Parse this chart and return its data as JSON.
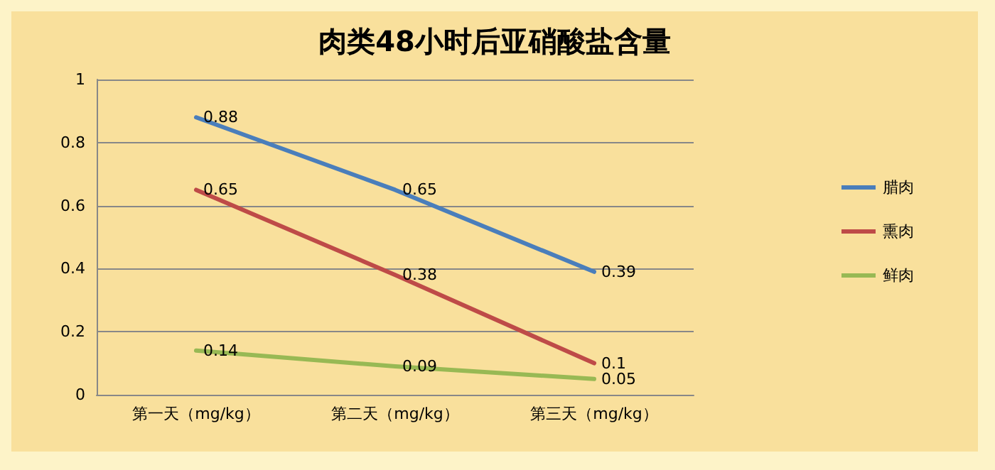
{
  "chart_data": {
    "type": "line",
    "title": "肉类48小时后亚硝酸盐含量",
    "categories": [
      "第一天（mg/kg）",
      "第二天（mg/kg）",
      "第三天（mg/kg）"
    ],
    "series": [
      {
        "name": "腊肉",
        "color": "#4a7ebb",
        "values": [
          0.88,
          0.65,
          0.39
        ]
      },
      {
        "name": "熏肉",
        "color": "#be4b48",
        "values": [
          0.65,
          0.38,
          0.1
        ]
      },
      {
        "name": "鲜肉",
        "color": "#98b954",
        "values": [
          0.14,
          0.09,
          0.05
        ]
      }
    ],
    "ylim": [
      0,
      1
    ],
    "yticks": [
      0,
      0.2,
      0.4,
      0.6,
      0.8,
      1
    ],
    "grid": "y",
    "legend": "right",
    "data_labels": true,
    "marker": "none",
    "line_style": "solid"
  }
}
